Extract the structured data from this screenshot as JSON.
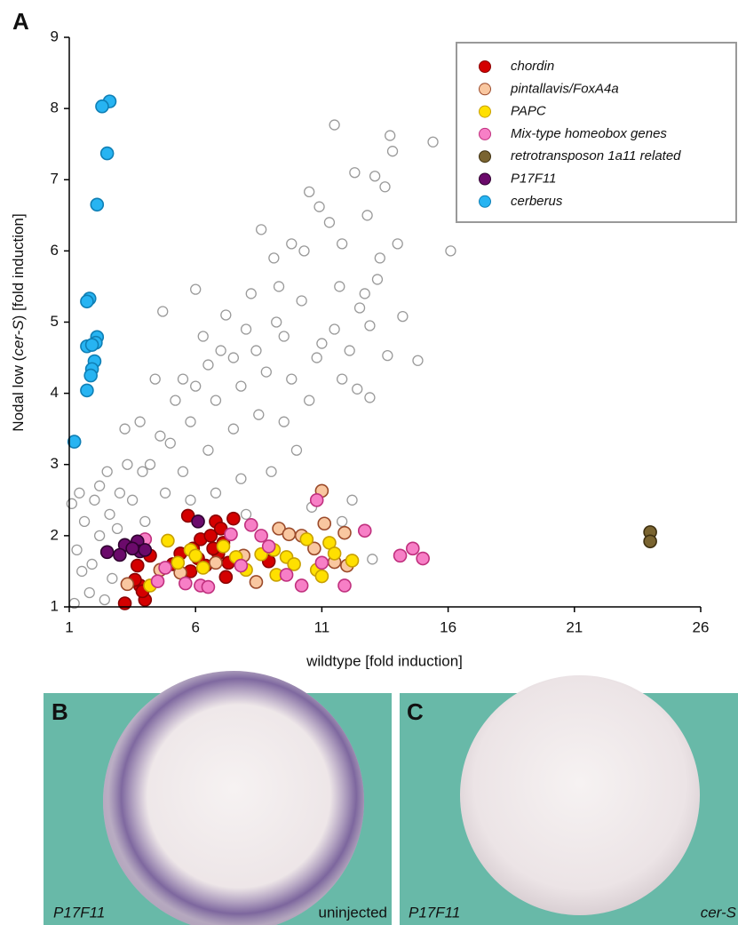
{
  "chart_data": {
    "type": "scatter",
    "panel_label": "A",
    "x_label": "wildtype [fold induction]",
    "y_label_parts": [
      "Nodal low (",
      "cer-S",
      ") [fold induction]"
    ],
    "xlim": [
      1,
      26
    ],
    "xticks": [
      1,
      6,
      11,
      16,
      21,
      26
    ],
    "ylim": [
      1,
      9
    ],
    "yticks": [
      1,
      2,
      3,
      4,
      5,
      6,
      7,
      8,
      9
    ],
    "grid": false,
    "legend": "top-right",
    "series": [
      {
        "color": "#ffffff",
        "edge": "#9a9a9a",
        "x": [
          11.5,
          15.4,
          13.7,
          13.8,
          12.3,
          13.1,
          10.5,
          13.5,
          16.1,
          14.8,
          14.2,
          13.6,
          8.6,
          12.7,
          11.7,
          10.9,
          9.8,
          9.1,
          6.0,
          4.7,
          12.9,
          12.4,
          12.9,
          12.1,
          11.0,
          9.5,
          8.0,
          7.5,
          6.5,
          5.5,
          4.4,
          3.8,
          3.2,
          2.5,
          2.0,
          1.6,
          1.3,
          1.5,
          1.8,
          2.4,
          1.2,
          2.9,
          3.5,
          4.2,
          5.0,
          5.8,
          6.8,
          7.8,
          8.8,
          9.8,
          10.8,
          11.5,
          12.5,
          13.2,
          14.0,
          10.2,
          9.2,
          8.2,
          7.2,
          6.3,
          5.2,
          4.6,
          3.9,
          3.0,
          2.2,
          1.9,
          2.7,
          4.8,
          5.5,
          6.5,
          7.5,
          8.5,
          9.5,
          10.5,
          11.8,
          9.0,
          10.0,
          7.8,
          6.8,
          5.8,
          8.0,
          10.6,
          11.8,
          12.2,
          13.0,
          12.0,
          3.6,
          1.1,
          2.2,
          4.0,
          1.4,
          2.6,
          3.3,
          6.0,
          7.0,
          8.4,
          9.3,
          10.3,
          11.3,
          11.8,
          12.8,
          13.3
        ],
        "y": [
          7.77,
          7.53,
          7.62,
          7.4,
          7.1,
          7.05,
          6.83,
          6.9,
          6.0,
          4.46,
          5.08,
          4.53,
          6.3,
          5.4,
          5.5,
          6.62,
          6.1,
          5.9,
          5.46,
          5.15,
          4.95,
          4.06,
          3.94,
          4.6,
          4.7,
          4.8,
          4.9,
          4.5,
          4.4,
          4.2,
          4.2,
          3.6,
          3.5,
          2.9,
          2.5,
          2.2,
          1.8,
          1.5,
          1.2,
          1.1,
          1.05,
          2.1,
          2.5,
          3.0,
          3.3,
          3.6,
          3.9,
          4.1,
          4.3,
          4.2,
          4.5,
          4.9,
          5.2,
          5.6,
          6.1,
          5.3,
          5.0,
          5.4,
          5.1,
          4.8,
          3.9,
          3.4,
          2.9,
          2.6,
          2.0,
          1.6,
          1.4,
          2.6,
          2.9,
          3.2,
          3.5,
          3.7,
          3.6,
          3.9,
          4.2,
          2.9,
          3.2,
          2.8,
          2.6,
          2.5,
          2.3,
          2.4,
          2.2,
          2.5,
          1.67,
          1.6,
          1.4,
          2.45,
          2.7,
          2.2,
          2.6,
          2.3,
          3.0,
          4.1,
          4.6,
          4.6,
          5.5,
          6.0,
          6.4,
          6.1,
          6.5,
          5.9
        ]
      },
      {
        "name": "chordin",
        "color": "#d40000",
        "edge": "#8a0000",
        "x": [
          3.2,
          3.7,
          3.8,
          4.0,
          3.6,
          3.9,
          4.2,
          5.1,
          5.4,
          5.7,
          5.9,
          6.2,
          6.4,
          6.6,
          6.8,
          7.0,
          7.1,
          7.3,
          7.5,
          6.9,
          5.8,
          6.1,
          8.9,
          7.2,
          6.7
        ],
        "y": [
          1.05,
          1.58,
          1.3,
          1.1,
          1.38,
          1.22,
          1.72,
          1.6,
          1.75,
          2.28,
          1.82,
          1.95,
          1.58,
          2.0,
          2.2,
          2.1,
          1.9,
          1.62,
          2.24,
          1.75,
          1.5,
          1.68,
          1.64,
          1.42,
          1.82
        ]
      },
      {
        "name": "pintallavis/FoxA4a",
        "color": "#f9c7a0",
        "edge": "#9b4a2a",
        "x": [
          3.3,
          4.6,
          5.4,
          6.8,
          7.9,
          8.4,
          9.3,
          10.2,
          10.7,
          11.0,
          11.1,
          11.9,
          11.5,
          12.0,
          9.7
        ],
        "y": [
          1.32,
          1.52,
          1.48,
          1.62,
          1.72,
          1.35,
          2.1,
          2.0,
          1.82,
          2.63,
          2.17,
          2.04,
          1.63,
          1.58,
          2.02
        ]
      },
      {
        "name": "PAPC",
        "color": "#ffe000",
        "edge": "#c8a000",
        "x": [
          4.2,
          4.9,
          5.3,
          5.8,
          6.3,
          7.1,
          7.6,
          8.0,
          8.6,
          9.2,
          9.6,
          9.9,
          10.4,
          10.8,
          11.0,
          11.3,
          11.5,
          12.2,
          9.1,
          6.0
        ],
        "y": [
          1.3,
          1.93,
          1.62,
          1.8,
          1.55,
          1.85,
          1.7,
          1.52,
          1.74,
          1.45,
          1.7,
          1.6,
          1.95,
          1.52,
          1.43,
          1.9,
          1.75,
          1.65,
          1.8,
          1.72
        ]
      },
      {
        "name": "Mix-type homeobox genes",
        "color": "#f77fc6",
        "edge": "#c0307e",
        "x": [
          4.0,
          4.5,
          4.8,
          5.6,
          6.2,
          6.5,
          7.8,
          8.2,
          8.6,
          8.9,
          9.6,
          10.2,
          10.8,
          11.0,
          11.9,
          12.7,
          14.1,
          14.6,
          15.0,
          7.4
        ],
        "y": [
          1.95,
          1.36,
          1.55,
          1.33,
          1.3,
          1.28,
          1.58,
          2.15,
          2.0,
          1.85,
          1.45,
          1.3,
          2.5,
          1.62,
          1.3,
          2.07,
          1.72,
          1.82,
          1.68,
          2.02
        ]
      },
      {
        "name": "retrotransposon 1a11 related",
        "color": "#7a6430",
        "edge": "#3e3010",
        "x": [
          24.0,
          24.0
        ],
        "y": [
          2.05,
          1.92
        ]
      },
      {
        "name": "P17F11",
        "color": "#6b0a6b",
        "edge": "#2f002f",
        "x": [
          3.7,
          3.2,
          3.8,
          2.5,
          3.0,
          4.0,
          6.1,
          3.5
        ],
        "y": [
          1.92,
          1.87,
          1.78,
          1.77,
          1.73,
          1.8,
          2.2,
          1.82
        ]
      },
      {
        "name": "cerberus",
        "color": "#27b4f2",
        "edge": "#0f7fb5",
        "x": [
          2.6,
          2.3,
          2.5,
          2.1,
          1.8,
          1.7,
          2.1,
          2.05,
          1.7,
          1.9,
          2.0,
          1.9,
          1.85,
          1.7,
          1.2
        ],
        "y": [
          8.1,
          8.03,
          7.37,
          6.65,
          5.33,
          5.29,
          4.79,
          4.71,
          4.66,
          4.68,
          4.45,
          4.34,
          4.25,
          4.04,
          3.32
        ]
      }
    ]
  },
  "panels": [
    {
      "label": "B",
      "left_caption": "P17F11",
      "right_caption": "uninjected"
    },
    {
      "label": "C",
      "left_caption": "P17F11",
      "right_caption": "cer-S"
    }
  ]
}
